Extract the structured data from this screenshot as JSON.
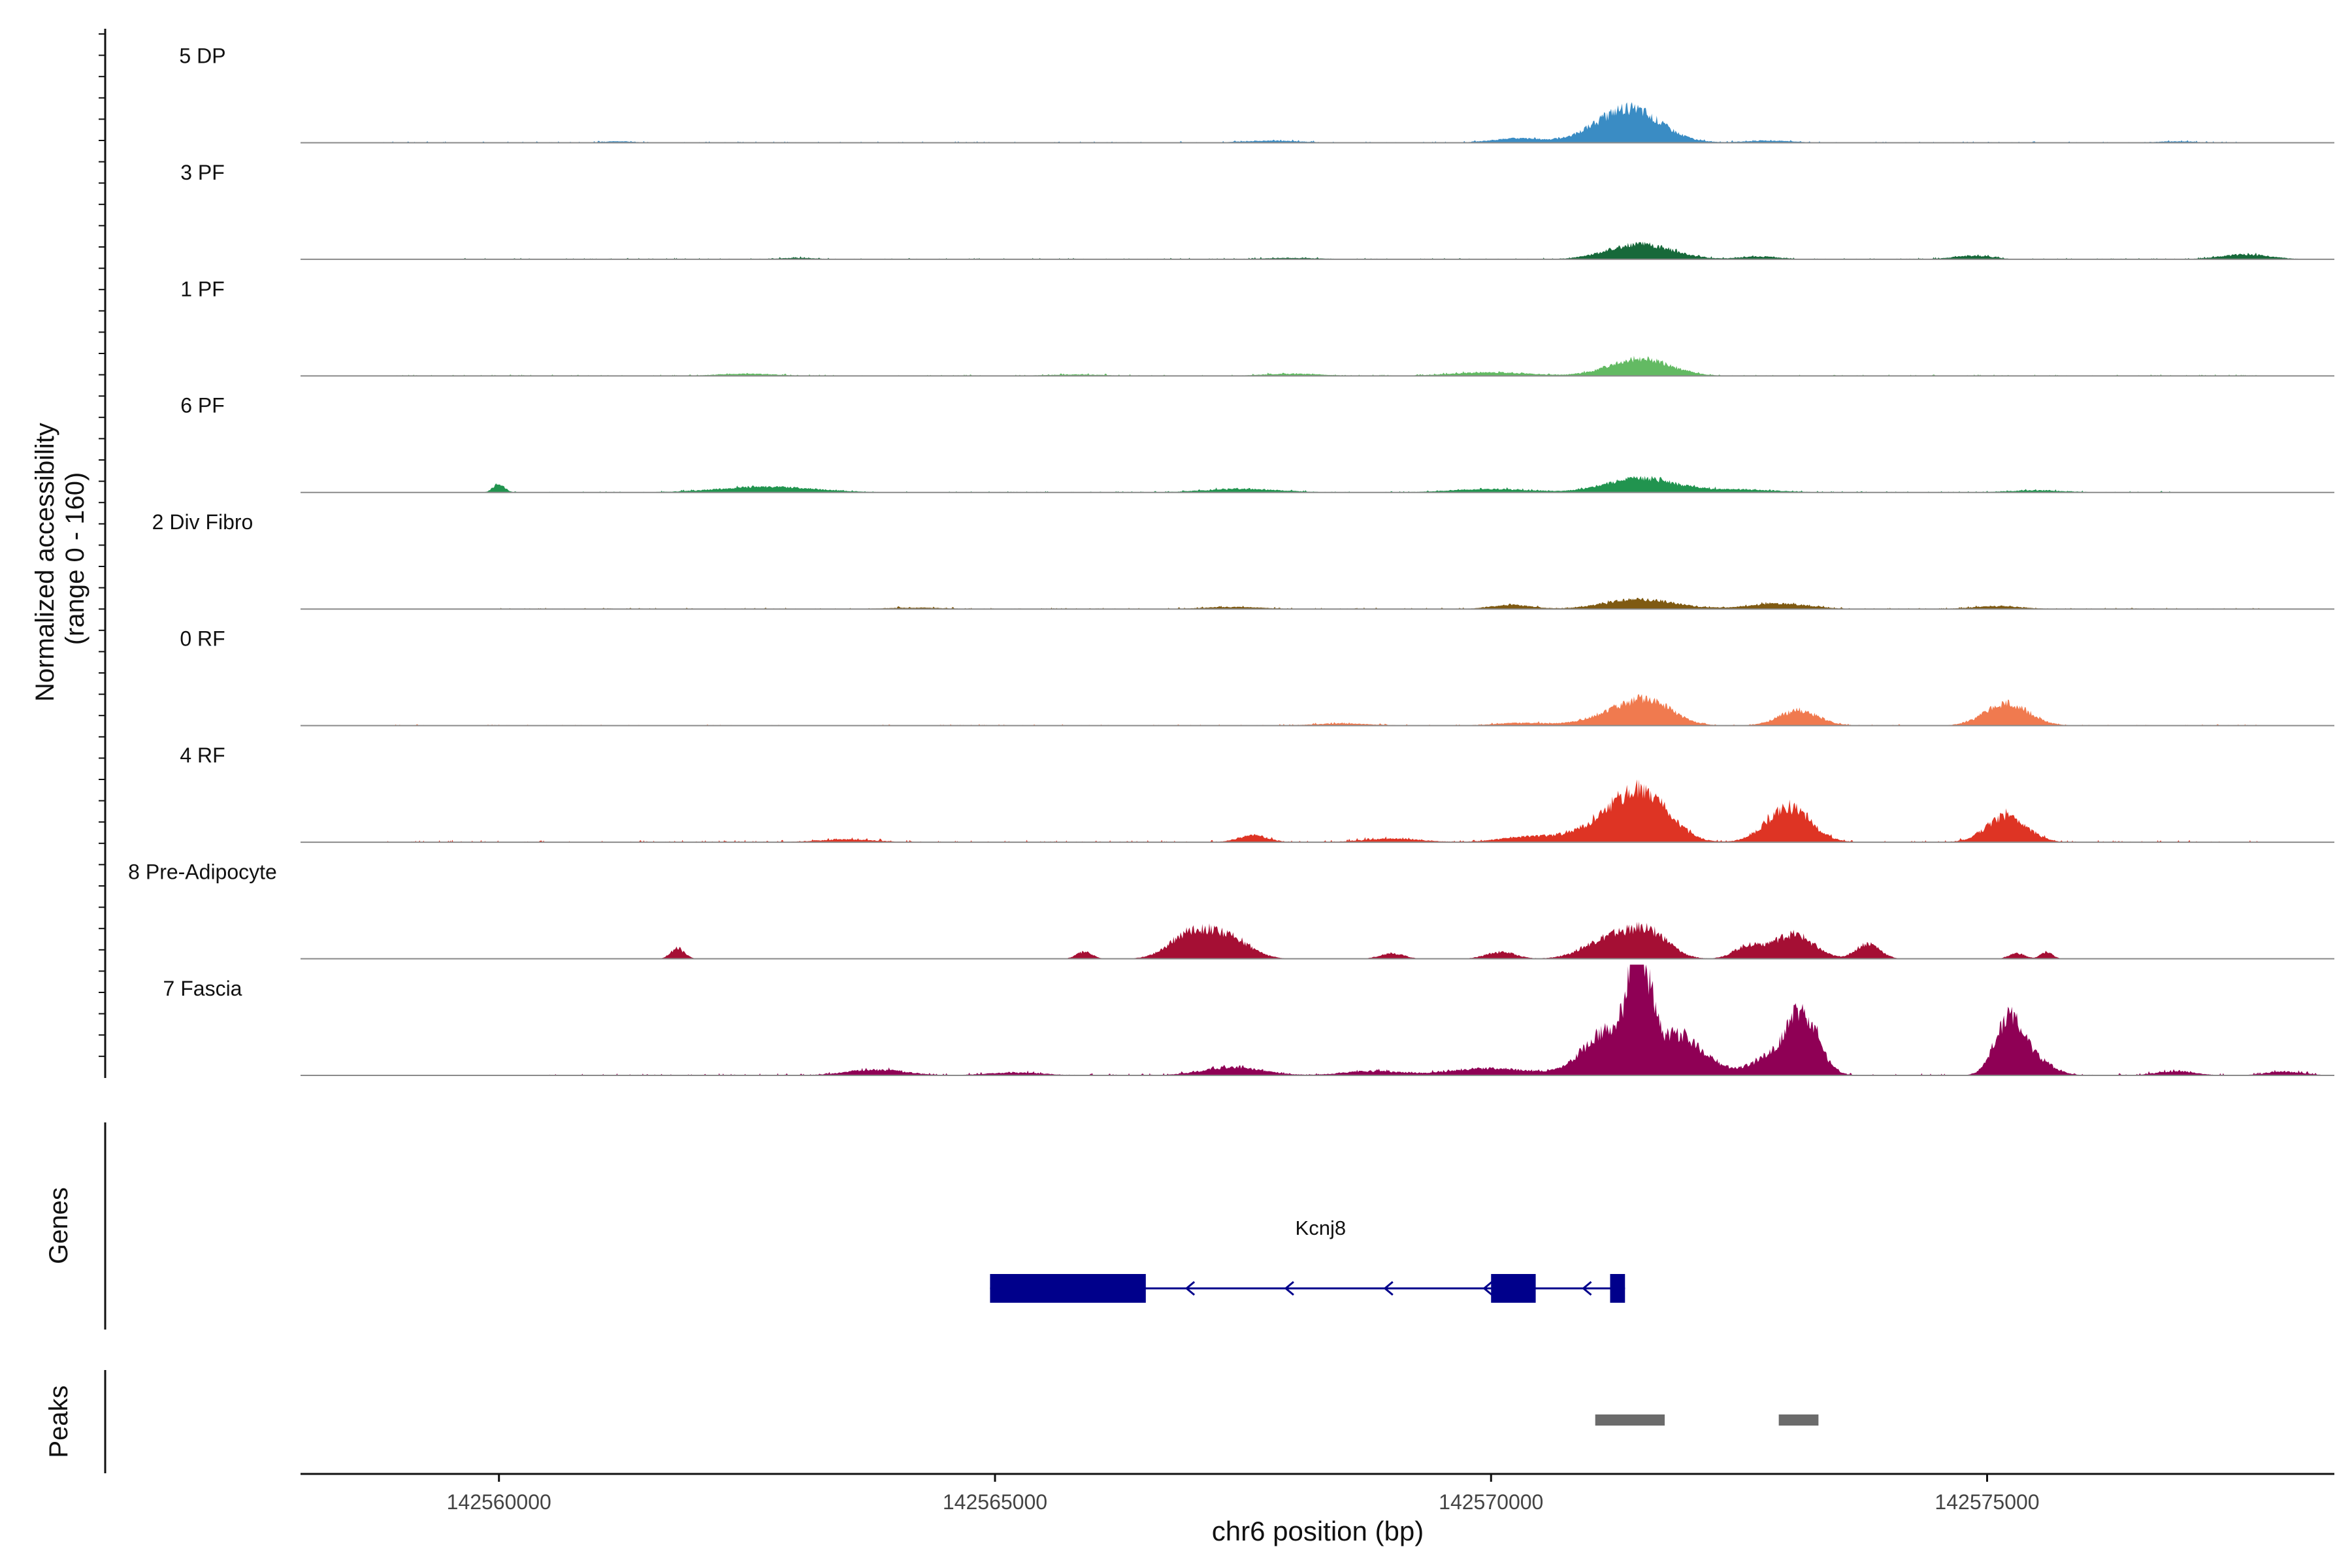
{
  "chart_data": {
    "type": "area",
    "region": "chr6",
    "ylabel_line1": "Normalized accessibility",
    "ylabel_line2": "(range 0 - 160)",
    "xlabel": "chr6 position (bp)",
    "xlim": [
      142558000,
      142578500
    ],
    "xticks": [
      142560000,
      142565000,
      142570000,
      142575000
    ],
    "xtick_labels": [
      "142560000",
      "142565000",
      "142570000",
      "142575000"
    ],
    "ylim": [
      0,
      160
    ],
    "tracks": [
      {
        "name": "5 DP",
        "color": "#3a8cc4",
        "peaks": [
          [
            142571400,
            40,
            300
          ],
          [
            142571300,
            10,
            380
          ],
          [
            142570250,
            6,
            250
          ],
          [
            142567800,
            3,
            300
          ],
          [
            142572800,
            3,
            250
          ],
          [
            142576900,
            2,
            200
          ],
          [
            142561200,
            2,
            150
          ]
        ],
        "noise": 2,
        "noise_start": 142558800,
        "noise_end": 142577800
      },
      {
        "name": "3 PF",
        "color": "#17693a",
        "peaks": [
          [
            142571500,
            22,
            320
          ],
          [
            142574850,
            5,
            200
          ],
          [
            142577600,
            7,
            250
          ],
          [
            142572700,
            4,
            200
          ],
          [
            142563000,
            2,
            200
          ],
          [
            142568000,
            2,
            300
          ]
        ],
        "noise": 2,
        "noise_start": 142559600,
        "noise_end": 142577800
      },
      {
        "name": "1 PF",
        "color": "#63ba63",
        "peaks": [
          [
            142571500,
            25,
            300
          ],
          [
            142570000,
            5,
            400
          ],
          [
            142568000,
            3,
            300
          ],
          [
            142562500,
            3,
            300
          ],
          [
            142565800,
            2,
            300
          ]
        ],
        "noise": 2,
        "noise_start": 142558800,
        "noise_end": 142577800
      },
      {
        "name": "6 PF",
        "color": "#21944f",
        "peaks": [
          [
            142571500,
            20,
            350
          ],
          [
            142560000,
            12,
            60
          ],
          [
            142562700,
            8,
            500
          ],
          [
            142570000,
            5,
            400
          ],
          [
            142567500,
            5,
            400
          ],
          [
            142572500,
            4,
            400
          ],
          [
            142575500,
            3,
            300
          ]
        ],
        "noise": 2,
        "noise_start": 142559950,
        "noise_end": 142576900
      },
      {
        "name": "2 Div Fibro",
        "color": "#7f5a12",
        "peaks": [
          [
            142571500,
            14,
            350
          ],
          [
            142572900,
            8,
            300
          ],
          [
            142570200,
            6,
            200
          ],
          [
            142575100,
            4,
            250
          ],
          [
            142567400,
            3,
            300
          ],
          [
            142564200,
            2,
            300
          ]
        ],
        "noise": 2,
        "noise_start": 142559950,
        "noise_end": 142577800
      },
      {
        "name": "0 RF",
        "color": "#f07a4f",
        "peaks": [
          [
            142571400,
            28,
            320
          ],
          [
            142571650,
            15,
            200
          ],
          [
            142573100,
            22,
            200
          ],
          [
            142575200,
            32,
            220
          ],
          [
            142570300,
            4,
            250
          ],
          [
            142568500,
            3,
            300
          ]
        ],
        "noise": 2,
        "noise_start": 142558800,
        "noise_end": 142577800
      },
      {
        "name": "4 RF",
        "color": "#de3424",
        "peaks": [
          [
            142571550,
            60,
            260
          ],
          [
            142571200,
            28,
            300
          ],
          [
            142573000,
            50,
            220
          ],
          [
            142575200,
            38,
            200
          ],
          [
            142567600,
            10,
            150
          ],
          [
            142570400,
            8,
            300
          ],
          [
            142569000,
            5,
            300
          ],
          [
            142563500,
            4,
            300
          ]
        ],
        "noise": 3,
        "noise_start": 142558800,
        "noise_end": 142577800
      },
      {
        "name": "8 Pre-Adipocyte",
        "color": "#a50f34",
        "peaks": [
          [
            142567000,
            40,
            220
          ],
          [
            142567400,
            25,
            200
          ],
          [
            142571200,
            30,
            250
          ],
          [
            142571600,
            35,
            200
          ],
          [
            142573050,
            35,
            200
          ],
          [
            142572600,
            18,
            150
          ],
          [
            142573800,
            22,
            120
          ],
          [
            142561800,
            15,
            70
          ],
          [
            142565900,
            10,
            80
          ],
          [
            142569000,
            8,
            120
          ],
          [
            142570100,
            10,
            150
          ],
          [
            142575300,
            8,
            80
          ],
          [
            142575600,
            10,
            60
          ]
        ],
        "noise": 0,
        "noise_start": 142560000,
        "noise_end": 142577000
      },
      {
        "name": "7 Fascia",
        "color": "#8f0055",
        "peaks": [
          [
            142571500,
            150,
            110
          ],
          [
            142571200,
            65,
            260
          ],
          [
            142571850,
            45,
            180
          ],
          [
            142572100,
            22,
            200
          ],
          [
            142573150,
            75,
            150
          ],
          [
            142572900,
            30,
            250
          ],
          [
            142575200,
            65,
            130
          ],
          [
            142575400,
            30,
            200
          ],
          [
            142567400,
            12,
            300
          ],
          [
            142570000,
            10,
            400
          ],
          [
            142563800,
            8,
            300
          ],
          [
            142568800,
            6,
            300
          ],
          [
            142565200,
            4,
            300
          ],
          [
            142576900,
            6,
            200
          ],
          [
            142578000,
            5,
            200
          ]
        ],
        "noise": 3,
        "noise_start": 142560500,
        "noise_end": 142578400
      }
    ],
    "genes": {
      "title": "Genes",
      "name": "Kcnj8",
      "strand": "-",
      "start": 142564950,
      "end": 142571350,
      "exons": [
        [
          142564950,
          142566520
        ],
        [
          142570000,
          142570450
        ],
        [
          142571200,
          142571350
        ]
      ],
      "arrows": [
        142566950,
        142567950,
        142568950,
        142569950,
        142570950
      ],
      "color": "#00008b"
    },
    "peaks_track": {
      "title": "Peaks",
      "regions": [
        [
          142571050,
          142571750
        ],
        [
          142572900,
          142573300
        ]
      ],
      "color": "#6b6b6b"
    }
  }
}
